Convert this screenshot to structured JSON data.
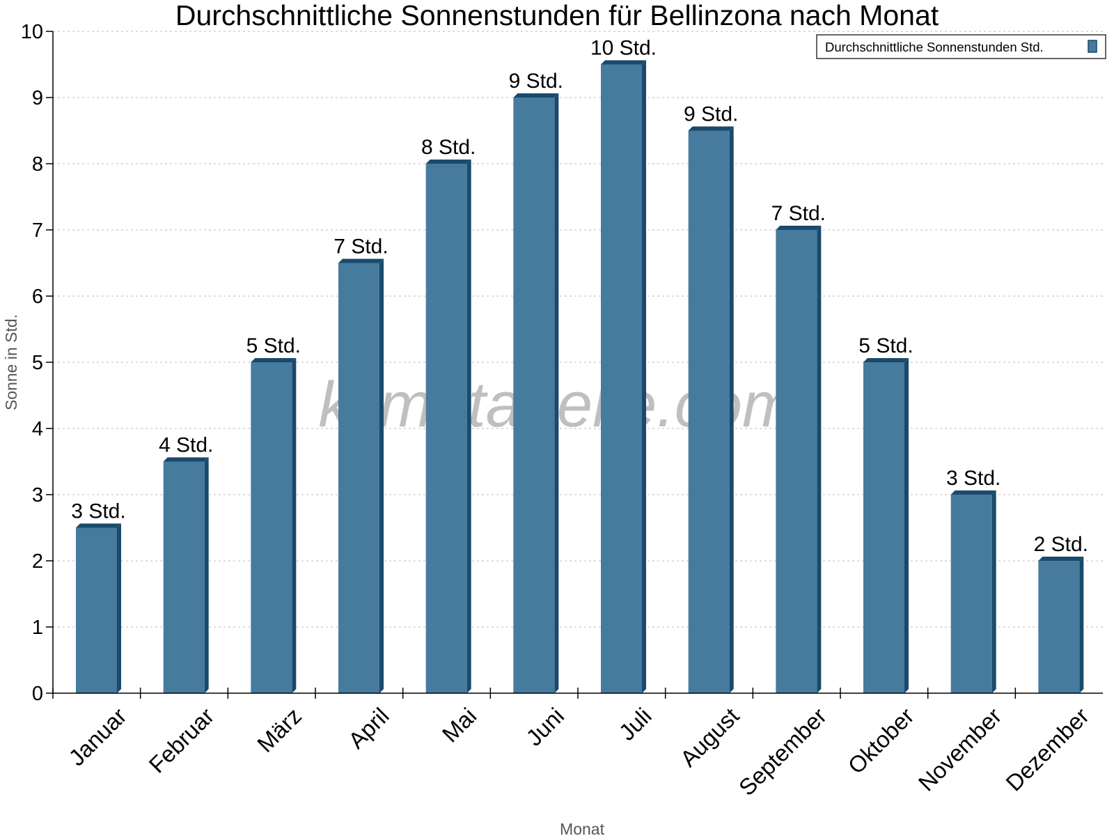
{
  "chart_data": {
    "type": "bar",
    "title": "Durchschnittliche Sonnenstunden für Bellinzona nach Monat",
    "xlabel": "Monat",
    "ylabel": "Sonne in Std.",
    "ylim": [
      0,
      10
    ],
    "yticks": [
      "0",
      "1",
      "2",
      "3",
      "4",
      "5",
      "6",
      "7",
      "8",
      "9",
      "10"
    ],
    "grid": true,
    "legend_position": "top-right",
    "categories": [
      "Januar",
      "Februar",
      "März",
      "April",
      "Mai",
      "Juni",
      "Juli",
      "August",
      "September",
      "Oktober",
      "November",
      "Dezember"
    ],
    "series": [
      {
        "name": "Durchschnittliche Sonnenstunden Std.",
        "color": "#467b9e",
        "side_color": "#1a4a6b",
        "values": [
          2.5,
          3.5,
          5,
          6.5,
          8,
          9,
          9.5,
          8.5,
          7,
          5,
          3,
          2
        ],
        "data_labels": [
          "3 Std.",
          "4 Std.",
          "5 Std.",
          "7 Std.",
          "8 Std.",
          "9 Std.",
          "10 Std.",
          "9 Std.",
          "7 Std.",
          "5 Std.",
          "3 Std.",
          "2 Std."
        ]
      }
    ]
  },
  "watermark": "klimatabelle.com"
}
